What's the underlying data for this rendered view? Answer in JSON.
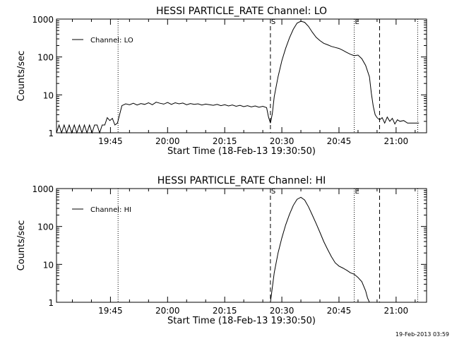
{
  "chart_data": [
    {
      "type": "line",
      "title": "HESSI PARTICLE_RATE Channel: LO",
      "xlabel": "Start Time (18-Feb-13 19:30:50)",
      "ylabel": "Counts/sec",
      "y_scale": "log",
      "ylim": [
        1,
        1000
      ],
      "y_ticks": [
        1,
        10,
        100,
        1000
      ],
      "y_tick_labels": [
        "1",
        "10",
        "100",
        "1000"
      ],
      "xlim": [
        "19:30:50",
        "21:08:00"
      ],
      "x_ticks": [
        "19:45",
        "20:00",
        "20:15",
        "20:30",
        "20:45",
        "21:00"
      ],
      "x_tick_labels": [
        "19:45",
        "20:00",
        "20:15",
        "20:30",
        "20:45",
        "21:00"
      ],
      "legend": {
        "position": "top-left",
        "entries": [
          "Channel: LO"
        ]
      },
      "series": [
        {
          "name": "Channel: LO",
          "x": [
            "19:30:50",
            "19:31:30",
            "19:32:10",
            "19:32:50",
            "19:33:30",
            "19:34:10",
            "19:34:50",
            "19:35:30",
            "19:36:10",
            "19:36:50",
            "19:37:30",
            "19:38:10",
            "19:38:50",
            "19:39:30",
            "19:40:10",
            "19:40:50",
            "19:41:30",
            "19:42:10",
            "19:42:50",
            "19:43:30",
            "19:44:10",
            "19:44:50",
            "19:45:30",
            "19:46:10",
            "19:46:50",
            "19:48:00",
            "19:49:00",
            "19:50:00",
            "19:51:00",
            "19:52:00",
            "19:53:00",
            "19:54:00",
            "19:55:00",
            "19:56:00",
            "19:57:00",
            "19:58:00",
            "19:59:00",
            "20:00:00",
            "20:01:00",
            "20:02:00",
            "20:03:00",
            "20:04:00",
            "20:05:00",
            "20:06:00",
            "20:07:00",
            "20:08:00",
            "20:09:00",
            "20:10:00",
            "20:11:00",
            "20:12:00",
            "20:13:00",
            "20:14:00",
            "20:15:00",
            "20:16:00",
            "20:17:00",
            "20:18:00",
            "20:19:00",
            "20:20:00",
            "20:21:00",
            "20:22:00",
            "20:23:00",
            "20:24:00",
            "20:25:00",
            "20:26:00",
            "20:26:30",
            "20:27:00",
            "20:27:30",
            "20:28:00",
            "20:29:00",
            "20:30:00",
            "20:31:00",
            "20:32:00",
            "20:33:00",
            "20:34:00",
            "20:35:00",
            "20:36:00",
            "20:37:00",
            "20:38:00",
            "20:39:00",
            "20:40:00",
            "20:41:00",
            "20:42:00",
            "20:43:00",
            "20:44:00",
            "20:45:00",
            "20:46:00",
            "20:47:00",
            "20:48:00",
            "20:49:00",
            "20:50:00",
            "20:51:00",
            "20:52:00",
            "20:53:00",
            "20:53:30",
            "20:54:00",
            "20:54:30",
            "20:55:00",
            "20:55:40",
            "20:56:20",
            "20:57:00",
            "20:57:40",
            "20:58:20",
            "20:59:00",
            "20:59:40",
            "21:00:20",
            "21:01:00",
            "21:02:00",
            "21:03:00",
            "21:04:00",
            "21:05:00",
            "21:06:00"
          ],
          "values": [
            1,
            1.6,
            1,
            1.6,
            1,
            1.6,
            1,
            1.6,
            1,
            1.6,
            1,
            1.6,
            1,
            1.6,
            1,
            1.6,
            1.6,
            1,
            1.6,
            1.6,
            2.5,
            2.1,
            2.4,
            1.6,
            1.8,
            5.2,
            5.8,
            5.5,
            6.0,
            5.4,
            5.9,
            5.6,
            6.2,
            5.5,
            6.4,
            6.0,
            5.7,
            6.3,
            5.6,
            6.2,
            5.8,
            6.1,
            5.5,
            5.9,
            5.6,
            5.8,
            5.4,
            5.7,
            5.5,
            5.3,
            5.6,
            5.2,
            5.5,
            5.1,
            5.4,
            5.0,
            5.3,
            4.9,
            5.2,
            4.8,
            5.1,
            4.7,
            5.0,
            4.6,
            2.6,
            1.8,
            3.2,
            9,
            30,
            80,
            170,
            320,
            540,
            780,
            880,
            820,
            640,
            450,
            330,
            270,
            230,
            210,
            190,
            178,
            168,
            150,
            132,
            118,
            108,
            112,
            90,
            60,
            30,
            11,
            5,
            3,
            2.5,
            2.2,
            2.5,
            1.8,
            2.6,
            2.0,
            2.4,
            1.7,
            2.2,
            2.0,
            2.1,
            1.8,
            1.8,
            1.8,
            1.8
          ]
        }
      ],
      "annotations": [
        {
          "label": "S",
          "x": "20:27:00",
          "style": "dashed"
        },
        {
          "label": "E",
          "x": "20:49:00",
          "style": "dotted"
        }
      ],
      "vertical_lines": [
        {
          "x": "19:47:00",
          "style": "dotted"
        },
        {
          "x": "20:55:40",
          "style": "dashed"
        },
        {
          "x": "21:05:40",
          "style": "dotted"
        }
      ]
    },
    {
      "type": "line",
      "title": "HESSI PARTICLE_RATE Channel: HI",
      "xlabel": "Start Time (18-Feb-13 19:30:50)",
      "ylabel": "Counts/sec",
      "y_scale": "log",
      "ylim": [
        1,
        1000
      ],
      "y_ticks": [
        1,
        10,
        100,
        1000
      ],
      "y_tick_labels": [
        "1",
        "10",
        "100",
        "1000"
      ],
      "xlim": [
        "19:30:50",
        "21:08:00"
      ],
      "x_ticks": [
        "19:45",
        "20:00",
        "20:15",
        "20:30",
        "20:45",
        "21:00"
      ],
      "x_tick_labels": [
        "19:45",
        "20:00",
        "20:15",
        "20:30",
        "20:45",
        "21:00"
      ],
      "legend": {
        "position": "top-left",
        "entries": [
          "Channel: HI"
        ]
      },
      "series": [
        {
          "name": "Channel: HI",
          "x": [
            "20:27:00",
            "20:28:00",
            "20:29:00",
            "20:30:00",
            "20:31:00",
            "20:32:00",
            "20:33:00",
            "20:34:00",
            "20:35:00",
            "20:36:00",
            "20:37:00",
            "20:38:00",
            "20:39:00",
            "20:40:00",
            "20:41:00",
            "20:42:00",
            "20:43:00",
            "20:44:00",
            "20:45:00",
            "20:46:00",
            "20:47:00",
            "20:48:00",
            "20:49:00",
            "20:50:00",
            "20:51:00",
            "20:52:00",
            "20:52:30",
            "20:53:00"
          ],
          "values": [
            1,
            6,
            20,
            50,
            110,
            210,
            360,
            520,
            590,
            500,
            330,
            200,
            120,
            70,
            40,
            25,
            16,
            11,
            9,
            8,
            7,
            6,
            5.5,
            4.5,
            3.5,
            2,
            1.3,
            1
          ]
        }
      ],
      "annotations": [
        {
          "label": "S",
          "x": "20:27:00",
          "style": "dashed"
        },
        {
          "label": "E",
          "x": "20:49:00",
          "style": "dotted"
        }
      ],
      "vertical_lines": [
        {
          "x": "19:47:00",
          "style": "dotted"
        },
        {
          "x": "20:55:40",
          "style": "dashed"
        },
        {
          "x": "21:05:40",
          "style": "dotted"
        }
      ]
    }
  ],
  "footer": {
    "timestamp": "19-Feb-2013 03:59"
  }
}
